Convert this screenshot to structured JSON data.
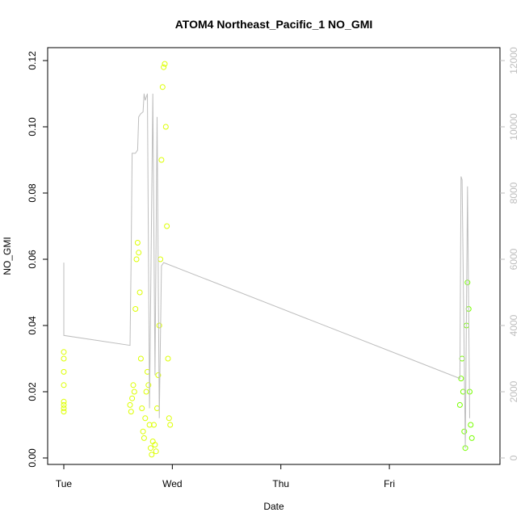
{
  "chart_data": {
    "type": "scatter",
    "title": "ATOM4 Northeast_Pacific_1 NO_GMI",
    "xlabel": "Date",
    "ylabel": "NO_GMI",
    "x_tick_labels": [
      "Tue",
      "Wed",
      "Thu",
      "Fri"
    ],
    "xlim": [
      0,
      3.9
    ],
    "ylim": [
      0,
      0.12
    ],
    "y_ticks": [
      "0.00",
      "0.02",
      "0.04",
      "0.06",
      "0.08",
      "0.10",
      "0.12"
    ],
    "y2lim": [
      0,
      12000
    ],
    "y2_ticks": [
      "0",
      "2000",
      "4000",
      "6000",
      "8000",
      "10000",
      "12000"
    ],
    "grid": false,
    "series": [
      {
        "kind": "points",
        "color": "#ddff00",
        "points": [
          [
            0.0,
            0.015
          ],
          [
            0.0,
            0.016
          ],
          [
            0.0,
            0.017
          ],
          [
            0.0,
            0.014
          ],
          [
            0.0,
            0.022
          ],
          [
            0.0,
            0.026
          ],
          [
            0.0,
            0.03
          ],
          [
            0.0,
            0.032
          ],
          [
            0.61,
            0.016
          ],
          [
            0.62,
            0.014
          ],
          [
            0.63,
            0.018
          ],
          [
            0.64,
            0.022
          ],
          [
            0.65,
            0.02
          ],
          [
            0.66,
            0.045
          ],
          [
            0.67,
            0.06
          ],
          [
            0.68,
            0.065
          ],
          [
            0.69,
            0.062
          ],
          [
            0.7,
            0.05
          ],
          [
            0.71,
            0.03
          ],
          [
            0.72,
            0.015
          ],
          [
            0.73,
            0.008
          ],
          [
            0.74,
            0.006
          ],
          [
            0.75,
            0.012
          ],
          [
            0.76,
            0.02
          ],
          [
            0.77,
            0.026
          ],
          [
            0.78,
            0.022
          ],
          [
            0.79,
            0.01
          ],
          [
            0.8,
            0.003
          ],
          [
            0.81,
            0.001
          ],
          [
            0.82,
            0.005
          ],
          [
            0.83,
            0.01
          ],
          [
            0.84,
            0.004
          ],
          [
            0.85,
            0.002
          ],
          [
            0.86,
            0.015
          ],
          [
            0.87,
            0.025
          ],
          [
            0.88,
            0.04
          ],
          [
            0.89,
            0.06
          ],
          [
            0.9,
            0.09
          ],
          [
            0.91,
            0.112
          ],
          [
            0.92,
            0.118
          ],
          [
            0.93,
            0.119
          ],
          [
            0.94,
            0.1
          ],
          [
            0.95,
            0.07
          ],
          [
            0.96,
            0.03
          ],
          [
            0.97,
            0.012
          ],
          [
            0.98,
            0.01
          ]
        ]
      },
      {
        "kind": "points",
        "color": "#77ff00",
        "points": [
          [
            3.65,
            0.016
          ],
          [
            3.66,
            0.024
          ],
          [
            3.67,
            0.03
          ],
          [
            3.68,
            0.02
          ],
          [
            3.69,
            0.008
          ],
          [
            3.7,
            0.003
          ],
          [
            3.71,
            0.04
          ],
          [
            3.72,
            0.053
          ],
          [
            3.73,
            0.045
          ],
          [
            3.74,
            0.02
          ],
          [
            3.75,
            0.01
          ],
          [
            3.76,
            0.006
          ]
        ]
      },
      {
        "kind": "line",
        "color": "#bdbdbd",
        "axis": "right",
        "points": [
          [
            0.0,
            5900
          ],
          [
            0.0,
            3700
          ],
          [
            0.61,
            3400
          ],
          [
            0.62,
            5900
          ],
          [
            0.63,
            9200
          ],
          [
            0.66,
            9200
          ],
          [
            0.68,
            9300
          ],
          [
            0.69,
            10300
          ],
          [
            0.71,
            10400
          ],
          [
            0.73,
            10450
          ],
          [
            0.74,
            11000
          ],
          [
            0.75,
            10800
          ],
          [
            0.77,
            11000
          ],
          [
            0.79,
            1500
          ],
          [
            0.82,
            11000
          ],
          [
            0.84,
            2500
          ],
          [
            0.86,
            10300
          ],
          [
            0.88,
            1200
          ],
          [
            0.9,
            5800
          ],
          [
            0.92,
            5900
          ],
          [
            3.65,
            2400
          ],
          [
            3.66,
            8500
          ],
          [
            3.67,
            8400
          ],
          [
            3.7,
            300
          ],
          [
            3.72,
            8200
          ],
          [
            3.74,
            1200
          ]
        ]
      }
    ]
  }
}
